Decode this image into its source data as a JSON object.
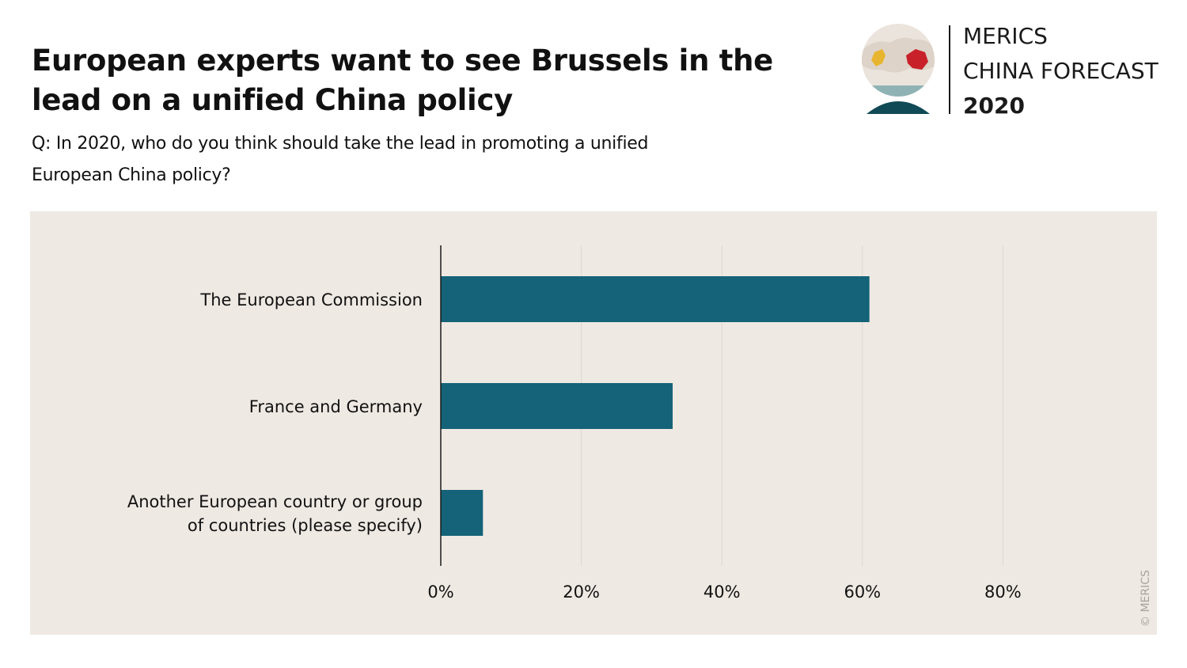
{
  "title": "European experts want to see Brussels in the lead on a unified China policy",
  "subtitle": "Q: In 2020, who do you think should take the lead in promoting a unified European China policy?",
  "logo": {
    "line1": "MERICS",
    "line2": "CHINA FORECAST",
    "line3": "2020"
  },
  "copyright": "© MERICS",
  "colors": {
    "bar": "#146378",
    "panel": "#efe9e3",
    "grid": "#ddd7d1",
    "axis": "#1a1a1a"
  },
  "chart_data": {
    "type": "bar",
    "orientation": "horizontal",
    "categories": [
      [
        "The European Commission"
      ],
      [
        "France and Germany"
      ],
      [
        "Another European country or group",
        "of countries (please specify)"
      ]
    ],
    "values": [
      61,
      33,
      6
    ],
    "unit": "%",
    "xlim": [
      0,
      100
    ],
    "xticks": [
      0,
      20,
      40,
      60,
      80
    ],
    "xtick_labels": [
      "0%",
      "20%",
      "40%",
      "60%",
      "80%"
    ],
    "grid": true
  }
}
